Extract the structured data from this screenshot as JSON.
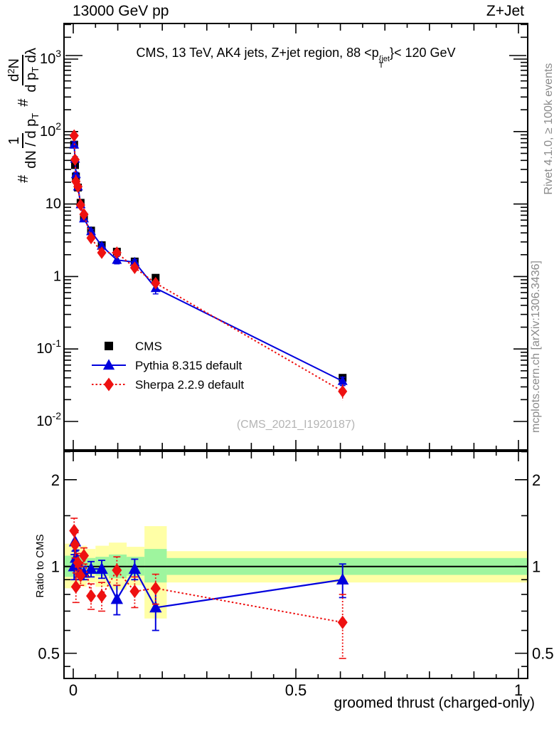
{
  "header": {
    "left": "13000 GeV pp",
    "right": "Z+Jet"
  },
  "panel_title": {
    "pre": "CMS, 13 TeV, AK4 jets, Z+jet region, 88 <p",
    "sup": "{jet",
    "sub": "T",
    "post": "}< 120 GeV"
  },
  "watermark": "(CMS_2021_I1920187)",
  "side_captions": {
    "top": "Rivet 4.1.0, ≥ 100k events",
    "bottom": "mcplots.cern.ch [arXiv:1306.3436]"
  },
  "y_axis_label": {
    "hash1": "#",
    "frac1_num": "1",
    "frac1_den_main": "dN / d p",
    "frac1_den_sub": "T",
    "hash2": "#",
    "frac2_num_pre": "d",
    "frac2_num_sup": "2",
    "frac2_num_post": "N",
    "frac2_den_main": "d p",
    "frac2_den_sub": "T",
    "frac2_den_post": " dλ"
  },
  "legend": [
    {
      "label": "CMS",
      "marker": "square",
      "color": "#000000",
      "line": "none"
    },
    {
      "label": "Pythia 8.315 default",
      "marker": "triangle",
      "color": "#0000dd",
      "line": "solid"
    },
    {
      "label": "Sherpa 2.2.9 default",
      "marker": "diamond",
      "color": "#ee1111",
      "line": "dotted"
    }
  ],
  "colors": {
    "cms": "#000000",
    "pythia": "#0000dd",
    "sherpa": "#ee1111",
    "band_yellow": "#ffffa6",
    "band_green": "#9ef59e",
    "gray_caption": "#8a8a8a",
    "watermark": "#b4b4b4"
  },
  "chart_data": {
    "type": "line",
    "title": "CMS, 13 TeV, AK4 jets, Z+jet region, 88 <p_T^{jet}< 120 GeV",
    "xlabel": "groomed thrust (charged-only)",
    "ylabel": "# 1/(dN / d p_T)  # d^2N/(d p_T d lambda)",
    "xlim": [
      -0.021,
      1.021
    ],
    "ylim_log": [
      0.004,
      3100
    ],
    "grid": false,
    "legend_position": "left-middle",
    "x": [
      0.002,
      0.004,
      0.006,
      0.0105,
      0.0165,
      0.024,
      0.04,
      0.064,
      0.098,
      0.138,
      0.185,
      0.605
    ],
    "series": [
      {
        "name": "CMS",
        "values": [
          66,
          34.5,
          24,
          16.9,
          10.4,
          6.6,
          4.3,
          2.7,
          2.2,
          1.61,
          0.96,
          0.04
        ]
      },
      {
        "name": "Pythia 8.315 default",
        "values": [
          66,
          42,
          25.7,
          17.4,
          9.9,
          6.3,
          4.2,
          2.65,
          1.69,
          1.58,
          0.69,
          0.036
        ]
      },
      {
        "name": "Sherpa 2.2.9 default",
        "values": [
          88,
          41,
          20.5,
          17.4,
          9.7,
          7.2,
          3.4,
          2.13,
          2.13,
          1.32,
          0.81,
          0.026
        ]
      }
    ],
    "y_ticks": [
      {
        "v": 1000,
        "base": "10",
        "exp": "3"
      },
      {
        "v": 100,
        "base": "10",
        "exp": "2"
      },
      {
        "v": 10,
        "base": "10",
        "exp": ""
      },
      {
        "v": 1,
        "base": "1",
        "exp": ""
      },
      {
        "v": 0.1,
        "base": "10",
        "exp": "-1"
      },
      {
        "v": 0.01,
        "base": "10",
        "exp": "-2"
      }
    ],
    "x_ticks": [
      {
        "v": 0,
        "label": "0"
      },
      {
        "v": 0.5,
        "label": "0.5"
      },
      {
        "v": 1,
        "label": "1"
      }
    ],
    "ratio": {
      "ylabel": "Ratio to CMS",
      "ylim_log": [
        0.41,
        2.5
      ],
      "unity": 1,
      "y_ticks": [
        {
          "v": 2,
          "label": "2"
        },
        {
          "v": 1,
          "label": "1"
        },
        {
          "v": 0.5,
          "label": "0.5"
        }
      ],
      "pythia": [
        1.0,
        1.22,
        1.07,
        1.03,
        0.95,
        0.95,
        0.98,
        0.98,
        0.77,
        0.98,
        0.72,
        0.9
      ],
      "pythia_err": [
        0.1,
        0.09,
        0.07,
        0.06,
        0.05,
        0.05,
        0.06,
        0.07,
        0.09,
        0.08,
        0.12,
        0.12
      ],
      "sherpa": [
        1.33,
        1.19,
        0.85,
        1.03,
        0.93,
        1.09,
        0.79,
        0.79,
        0.97,
        0.82,
        0.84,
        0.64
      ],
      "sherpa_err": [
        0.14,
        0.12,
        0.1,
        0.08,
        0.07,
        0.07,
        0.08,
        0.09,
        0.11,
        0.1,
        0.1,
        0.16
      ],
      "bands": [
        {
          "x0": -0.021,
          "x1": 0.005,
          "ylo": 0.84,
          "yhi": 1.2,
          "glo": 0.92,
          "ghi": 1.09
        },
        {
          "x0": 0.005,
          "x1": 0.01,
          "ylo": 0.87,
          "yhi": 1.16,
          "glo": 0.93,
          "ghi": 1.08
        },
        {
          "x0": 0.01,
          "x1": 0.02,
          "ylo": 0.86,
          "yhi": 1.17,
          "glo": 0.93,
          "ghi": 1.08
        },
        {
          "x0": 0.02,
          "x1": 0.03,
          "ylo": 0.85,
          "yhi": 1.18,
          "glo": 0.92,
          "ghi": 1.09
        },
        {
          "x0": 0.03,
          "x1": 0.05,
          "ylo": 0.88,
          "yhi": 1.15,
          "glo": 0.94,
          "ghi": 1.07
        },
        {
          "x0": 0.05,
          "x1": 0.08,
          "ylo": 0.85,
          "yhi": 1.18,
          "glo": 0.93,
          "ghi": 1.08
        },
        {
          "x0": 0.08,
          "x1": 0.12,
          "ylo": 0.83,
          "yhi": 1.21,
          "glo": 0.91,
          "ghi": 1.1
        },
        {
          "x0": 0.12,
          "x1": 0.16,
          "ylo": 0.86,
          "yhi": 1.17,
          "glo": 0.93,
          "ghi": 1.08
        },
        {
          "x0": 0.16,
          "x1": 0.21,
          "ylo": 0.66,
          "yhi": 1.38,
          "glo": 0.88,
          "ghi": 1.15
        },
        {
          "x0": 0.21,
          "x1": 1.021,
          "ylo": 0.88,
          "yhi": 1.13,
          "glo": 0.935,
          "ghi": 1.07
        }
      ]
    }
  }
}
